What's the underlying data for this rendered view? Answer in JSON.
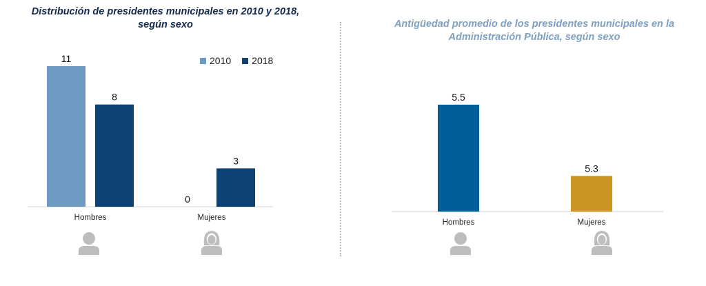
{
  "colors": {
    "series_2010": "#6f9ac2",
    "series_2018": "#0d4273",
    "hombres_avg": "#005e98",
    "mujeres_avg": "#cc9523",
    "icon_gray": "#bdbdbd",
    "axis": "#d0d0d0"
  },
  "icons": {
    "male": "male-person-icon",
    "female": "female-person-icon"
  },
  "chart_data": [
    {
      "type": "bar",
      "title": "Distribución de presidentes municipales en 2010 y 2018, según sexo",
      "title_lines": [
        "Distribución de presidentes municipales en 2010 y 2018,",
        "según sexo"
      ],
      "categories": [
        "Hombres",
        "Mujeres"
      ],
      "series": [
        {
          "name": "2010",
          "values": [
            11,
            0
          ]
        },
        {
          "name": "2018",
          "values": [
            8,
            3
          ]
        }
      ],
      "xlabel": "",
      "ylabel": "",
      "ylim": [
        0,
        11
      ],
      "grid": false,
      "legend": "top-right",
      "data_labels": true
    },
    {
      "type": "bar",
      "title": "Antigüedad promedio de los presidentes municipales en la Administración Pública, según sexo",
      "title_lines": [
        "Antigüedad promedio de los presidentes municipales en la",
        "Administración Pública, según sexo"
      ],
      "categories": [
        "Hombres",
        "Mujeres"
      ],
      "values": [
        5.5,
        5.3
      ],
      "xlabel": "",
      "ylabel": "",
      "ylim": [
        5.2,
        5.55
      ],
      "grid": false,
      "legend": "none",
      "data_labels": true
    }
  ]
}
